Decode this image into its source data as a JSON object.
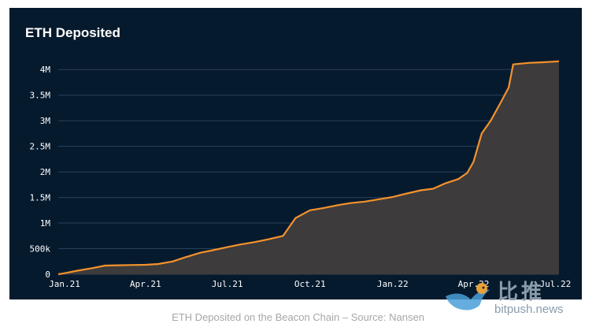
{
  "chart_data": {
    "type": "area",
    "title": "ETH Deposited",
    "xlabel": "",
    "ylabel": "",
    "x_tick_labels": [
      "Jan.21",
      "Apr.21",
      "Jul.21",
      "Oct.21",
      "Jan.22",
      "Apr.22",
      "Jul.22"
    ],
    "y_tick_labels": [
      "0",
      "500k",
      "1M",
      "1.5M",
      "2M",
      "2.5M",
      "3M",
      "3.5M",
      "4M"
    ],
    "y_ticks": [
      0,
      500000,
      1000000,
      1500000,
      2000000,
      2500000,
      3000000,
      3500000,
      4000000
    ],
    "ylim": [
      0,
      4250000
    ],
    "xlim": [
      "2020-12-25",
      "2022-07-05"
    ],
    "grid": true,
    "line_color": "#f5922b",
    "fill_color": "#3d3b3c",
    "background_color": "#061a2e",
    "series": [
      {
        "x": [
          "2020-12-25",
          "2021-01-01",
          "2021-01-15",
          "2021-02-01",
          "2021-02-15",
          "2021-03-01",
          "2021-03-15",
          "2021-04-01",
          "2021-04-15",
          "2021-05-01",
          "2021-05-15",
          "2021-06-01",
          "2021-06-15",
          "2021-07-01",
          "2021-07-15",
          "2021-08-01",
          "2021-08-15",
          "2021-09-01",
          "2021-09-15",
          "2021-10-01",
          "2021-10-15",
          "2021-11-01",
          "2021-11-15",
          "2021-12-01",
          "2021-12-15",
          "2022-01-01",
          "2022-01-15",
          "2022-02-01",
          "2022-02-15",
          "2022-03-01",
          "2022-03-15",
          "2022-03-25",
          "2022-04-01",
          "2022-04-10",
          "2022-04-20",
          "2022-05-01",
          "2022-05-10",
          "2022-05-15",
          "2022-06-01",
          "2022-06-15",
          "2022-07-05"
        ],
        "y": [
          0,
          20000,
          70000,
          120000,
          170000,
          175000,
          180000,
          185000,
          200000,
          250000,
          330000,
          420000,
          470000,
          530000,
          580000,
          630000,
          680000,
          750000,
          1100000,
          1250000,
          1290000,
          1350000,
          1390000,
          1420000,
          1460000,
          1510000,
          1570000,
          1640000,
          1670000,
          1780000,
          1860000,
          1980000,
          2200000,
          2750000,
          3000000,
          3350000,
          3650000,
          4100000,
          4130000,
          4140000,
          4160000
        ]
      }
    ]
  },
  "caption": "ETH Deposited on the Beacon Chain – Source: Nansen",
  "watermark": {
    "chinese": "比推",
    "english": "bitpush.news"
  }
}
